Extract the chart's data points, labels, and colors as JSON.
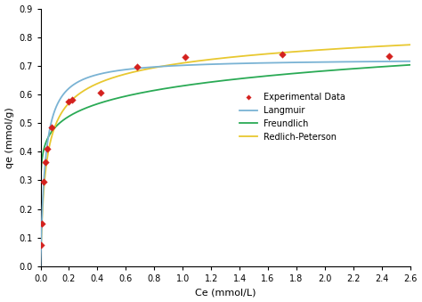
{
  "exp_Ce": [
    0.005,
    0.01,
    0.02,
    0.035,
    0.05,
    0.08,
    0.2,
    0.22,
    0.42,
    0.68,
    1.02,
    1.7,
    2.45
  ],
  "exp_qe": [
    0.075,
    0.15,
    0.295,
    0.365,
    0.41,
    0.485,
    0.575,
    0.58,
    0.605,
    0.695,
    0.73,
    0.74,
    0.735
  ],
  "langmuir_params": {
    "qm": 0.725,
    "KL": 30.0
  },
  "freundlich_params": {
    "KF": 0.63,
    "n": 0.115
  },
  "redlich_peterson_params": {
    "A": 22.0,
    "B": 30.0,
    "g": 0.93
  },
  "colors": {
    "experimental": "#d4211e",
    "langmuir": "#7ab3d4",
    "freundlich": "#2aaa55",
    "redlich_peterson": "#e8c830"
  },
  "xlabel": "Ce (mmol/L)",
  "ylabel": "qe (mmol/g)",
  "xlim": [
    0,
    2.6
  ],
  "ylim": [
    0,
    0.9
  ],
  "xticks": [
    0,
    0.2,
    0.4,
    0.6,
    0.8,
    1.0,
    1.2,
    1.4,
    1.6,
    1.8,
    2.0,
    2.2,
    2.4,
    2.6
  ],
  "yticks": [
    0,
    0.1,
    0.2,
    0.3,
    0.4,
    0.5,
    0.6,
    0.7,
    0.8,
    0.9
  ],
  "legend_labels": [
    "Experimental Data",
    "Langmuir",
    "Freundlich",
    "Redlich-Peterson"
  ],
  "background_color": "#ffffff",
  "label_fontsize": 8,
  "tick_fontsize": 7,
  "legend_fontsize": 7
}
